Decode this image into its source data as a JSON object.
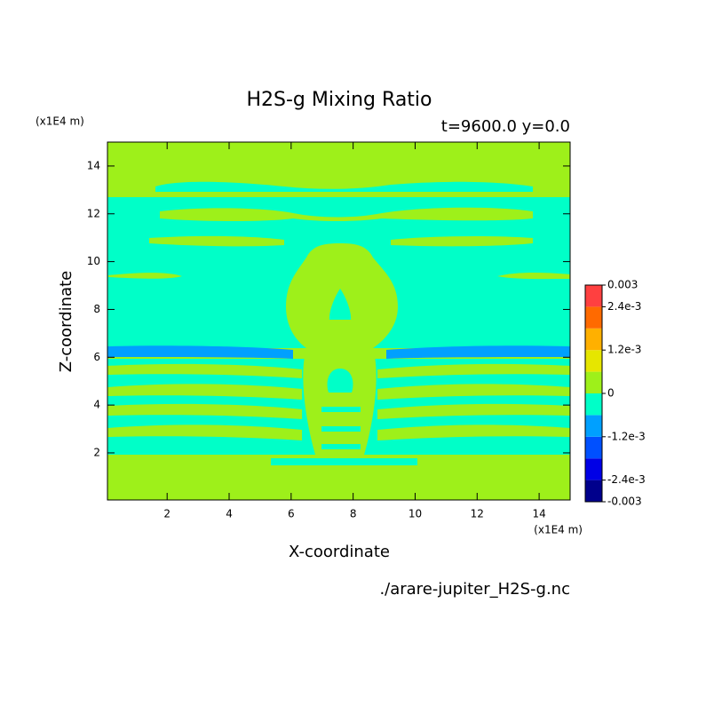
{
  "chart_data": {
    "type": "contour",
    "title": "H2S-g Mixing Ratio",
    "subtitle": "t=9600.0 y=0.0",
    "x_label": "X-coordinate",
    "y_label": "Z-coordinate",
    "x_unit": "(x1E4 m)",
    "y_unit": "(x1E4 m)",
    "source": "./arare-jupiter_H2S-g.nc",
    "xlim": [
      0.075,
      15
    ],
    "ylim": [
      0.03,
      15
    ],
    "xticks": [
      2,
      4,
      6,
      8,
      10,
      12,
      14
    ],
    "yticks": [
      2,
      4,
      6,
      8,
      10,
      12,
      14
    ],
    "levels": [
      -0.003,
      -0.0024,
      -0.0018,
      -0.0012,
      -0.0006,
      0,
      0.0006,
      0.0012,
      0.0018,
      0.0024,
      0.003
    ],
    "colors": [
      "#00008c",
      "#0000e6",
      "#0050ff",
      "#00a0ff",
      "#00ffc8",
      "#9ef01a",
      "#e6e600",
      "#ffb000",
      "#ff6a00",
      "#ff4040"
    ],
    "colorbar_ticks": [
      0.003,
      {
        "value": 0.0024,
        "label": "2.4e-3"
      },
      {
        "value": 0.0012,
        "label": "1.2e-3"
      },
      0,
      {
        "value": -0.0012,
        "label": "-1.2e-3"
      },
      {
        "value": -0.0024,
        "label": "-2.4e-3"
      },
      -0.003
    ]
  }
}
